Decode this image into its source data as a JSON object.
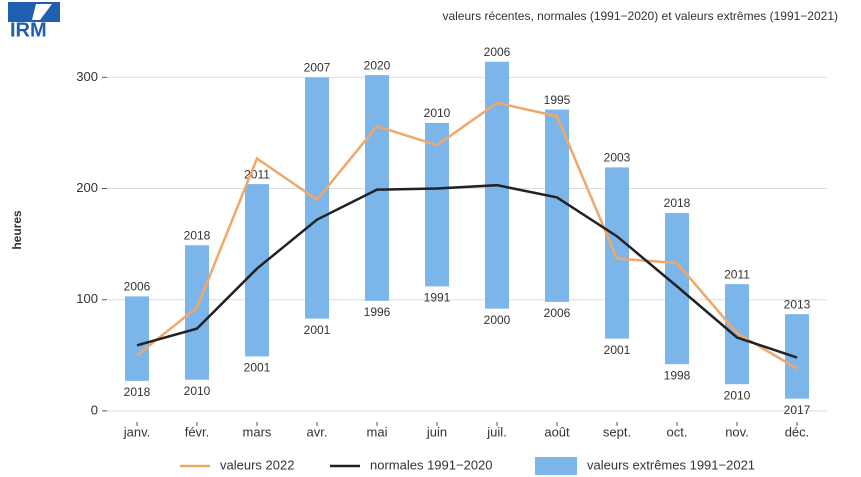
{
  "logo": "IRM",
  "chart_data": {
    "type": "bar",
    "title": "valeurs récentes, normales (1991−2020) et valeurs extrêmes (1991−2021)",
    "ylabel": "heures",
    "categories": [
      "janv.",
      "févr.",
      "mars",
      "avr.",
      "mai",
      "juin",
      "juil.",
      "août",
      "sept.",
      "oct.",
      "nov.",
      "déc."
    ],
    "ylim": [
      -10,
      330
    ],
    "yticks": [
      0,
      100,
      200,
      300
    ],
    "grid": true,
    "series": [
      {
        "name": "valeurs 2022",
        "type": "line",
        "color": "#f0a868",
        "values": [
          50,
          93,
          227,
          190,
          256,
          239,
          277,
          265,
          137,
          133,
          70,
          38
        ]
      },
      {
        "name": "normales 1991−2020",
        "type": "line",
        "color": "#222222",
        "values": [
          59,
          74,
          128,
          172,
          199,
          200,
          203,
          192,
          157,
          112,
          66,
          48
        ]
      },
      {
        "name": "valeurs extrêmes 1991−2021",
        "type": "range",
        "color": "#7cb5ea",
        "low": [
          27,
          28,
          49,
          83,
          99,
          112,
          92,
          98,
          65,
          42,
          24,
          11
        ],
        "high": [
          103,
          149,
          204,
          300,
          302,
          259,
          314,
          271,
          219,
          178,
          114,
          87
        ],
        "low_labels": [
          "2018",
          "2010",
          "2001",
          "2001",
          "1996",
          "1991",
          "2000",
          "2006",
          "2001",
          "1998",
          "2010",
          "2017"
        ],
        "high_labels": [
          "2006",
          "2018",
          "2011",
          "2007",
          "2020",
          "2010",
          "2006",
          "1995",
          "2003",
          "2018",
          "2011",
          "2013"
        ]
      }
    ],
    "legend": "bottom"
  }
}
